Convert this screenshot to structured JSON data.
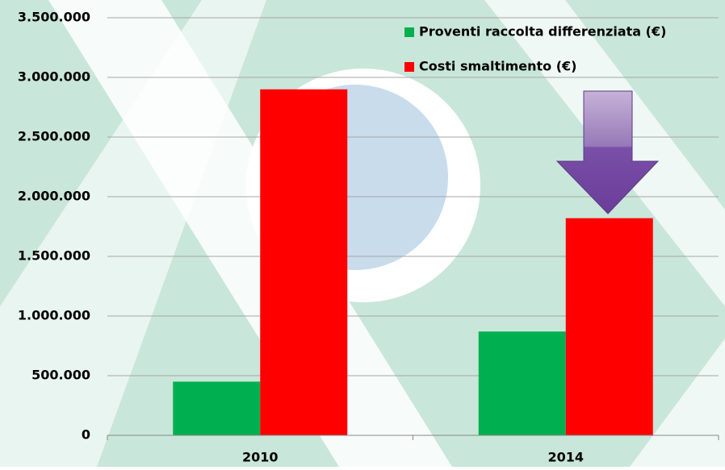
{
  "chart_data": {
    "type": "bar",
    "categories": [
      "2010",
      "2014"
    ],
    "series": [
      {
        "name": "Proventi raccolta differenziata (€)",
        "color": "#00b050",
        "values": [
          450000,
          870000
        ]
      },
      {
        "name": "Costi smaltimento (€)",
        "color": "#ff0000",
        "values": [
          2900000,
          1820000
        ]
      }
    ],
    "ylim": [
      0,
      3500000
    ],
    "yticks": [
      0,
      {
        "value": 500000,
        "label": "500.000"
      },
      {
        "value": 1000000,
        "label": "1.000.000"
      },
      {
        "value": 1500000,
        "label": "1.500.000"
      },
      {
        "value": 2000000,
        "label": "2.000.000"
      },
      {
        "value": 2500000,
        "label": "2.500.000"
      },
      {
        "value": 3000000,
        "label": "3.000.000"
      },
      {
        "value": 3500000,
        "label": "3.500.000"
      }
    ],
    "grid": true,
    "legend": "top-right"
  }
}
